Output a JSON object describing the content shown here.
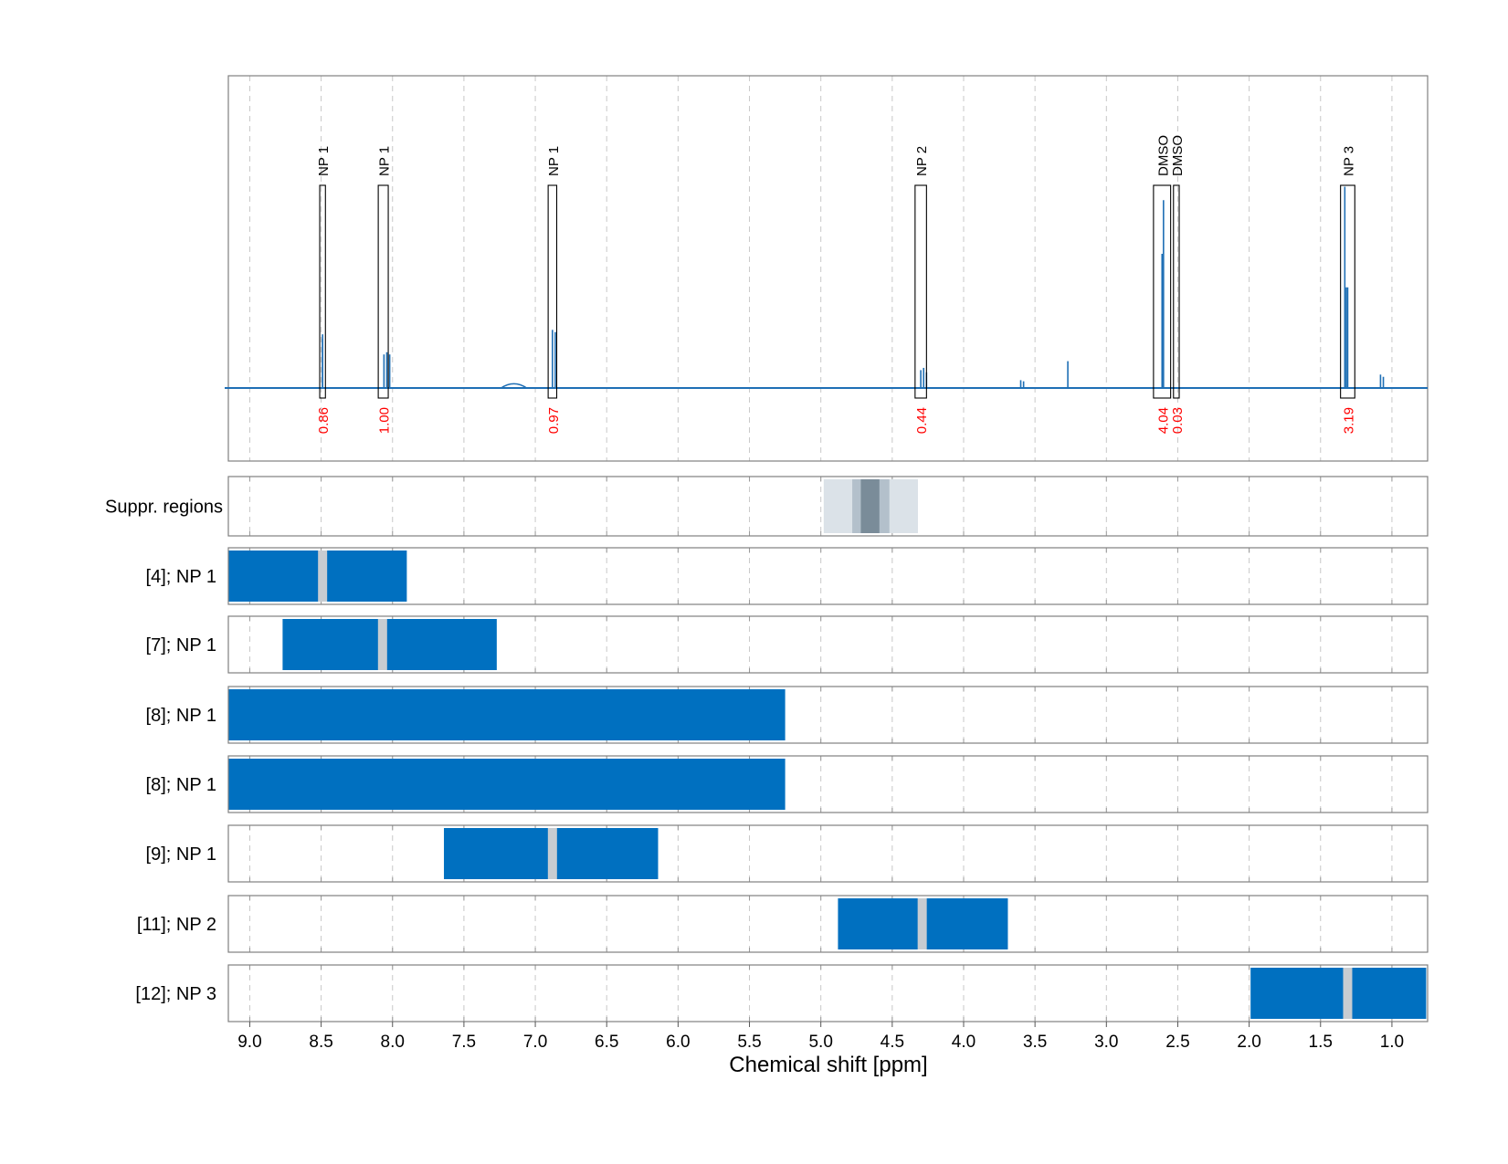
{
  "chart_data": {
    "type": "line",
    "xlabel": "Chemical shift [ppm]",
    "xlim": [
      9.15,
      0.75
    ],
    "x_reversed": true,
    "x_ticks": [
      9.0,
      8.5,
      8.0,
      7.5,
      7.0,
      6.5,
      6.0,
      5.5,
      5.0,
      4.5,
      4.0,
      3.5,
      3.0,
      2.5,
      2.0,
      1.5,
      1.0
    ],
    "x_tick_labels": [
      "9.0",
      "8.5",
      "8.0",
      "7.5",
      "7.0",
      "6.5",
      "6.0",
      "5.5",
      "5.0",
      "4.5",
      "4.0",
      "3.5",
      "3.0",
      "2.5",
      "2.0",
      "1.5",
      "1.0"
    ],
    "grid": true,
    "colors": {
      "spectrum": "#1f6fb5",
      "integral_text": "#ff0000",
      "bar": "#0070c0",
      "bar_center": "#c7ccd1"
    },
    "spectrum_peaks": [
      {
        "x": 8.49,
        "height": 0.22
      },
      {
        "x": 8.49,
        "height": 0.24
      },
      {
        "x": 8.06,
        "height": 0.15
      },
      {
        "x": 8.04,
        "height": 0.16
      },
      {
        "x": 8.02,
        "height": 0.15
      },
      {
        "x": 7.15,
        "height": 0.015,
        "broad": true
      },
      {
        "x": 6.88,
        "height": 0.26
      },
      {
        "x": 6.86,
        "height": 0.25
      },
      {
        "x": 4.3,
        "height": 0.08
      },
      {
        "x": 4.28,
        "height": 0.09
      },
      {
        "x": 4.26,
        "height": 0.07
      },
      {
        "x": 3.6,
        "height": 0.035
      },
      {
        "x": 3.58,
        "height": 0.03
      },
      {
        "x": 3.27,
        "height": 0.12
      },
      {
        "x": 2.6,
        "height": 0.84
      },
      {
        "x": 2.61,
        "height": 0.6
      },
      {
        "x": 1.33,
        "height": 0.9
      },
      {
        "x": 1.32,
        "height": 0.45
      },
      {
        "x": 1.31,
        "height": 0.45
      },
      {
        "x": 1.08,
        "height": 0.06
      },
      {
        "x": 1.06,
        "height": 0.05
      }
    ],
    "annotations": [
      {
        "label": "NP 1",
        "integral": "0.86",
        "x_from": 8.51,
        "x_to": 8.47
      },
      {
        "label": "NP 1",
        "integral": "1.00",
        "x_from": 8.1,
        "x_to": 8.03
      },
      {
        "label": "NP 1",
        "integral": "0.97",
        "x_from": 6.91,
        "x_to": 6.85
      },
      {
        "label": "NP 2",
        "integral": "0.44",
        "x_from": 4.34,
        "x_to": 4.26
      },
      {
        "label": "DMSO",
        "integral": "4.04",
        "x_from": 2.67,
        "x_to": 2.55
      },
      {
        "label": "DMSO",
        "integral": "0.03",
        "x_from": 2.53,
        "x_to": 2.49
      },
      {
        "label": "NP 3",
        "integral": "3.19",
        "x_from": 1.36,
        "x_to": 1.26
      }
    ],
    "suppression_region": {
      "label": "Suppr. regions",
      "outer": [
        4.98,
        4.32
      ],
      "middle": [
        4.78,
        4.52
      ],
      "inner": [
        4.72,
        4.59
      ]
    },
    "bar_tracks": [
      {
        "label": "[4]; NP 1",
        "range": [
          9.15,
          7.9
        ],
        "center": 8.49
      },
      {
        "label": "[7]; NP 1",
        "range": [
          8.77,
          7.27
        ],
        "center": 8.07
      },
      {
        "label": "[8]; NP 1",
        "range": [
          9.15,
          5.25
        ],
        "center": null
      },
      {
        "label": "[8]; NP 1",
        "range": [
          9.15,
          5.25
        ],
        "center": null
      },
      {
        "label": "[9]; NP 1",
        "range": [
          7.64,
          6.14
        ],
        "center": 6.88
      },
      {
        "label": "[11]; NP 2",
        "range": [
          4.88,
          3.69
        ],
        "center": 4.29
      },
      {
        "label": "[12]; NP 3",
        "range": [
          1.99,
          0.76
        ],
        "center": 1.31
      }
    ]
  }
}
